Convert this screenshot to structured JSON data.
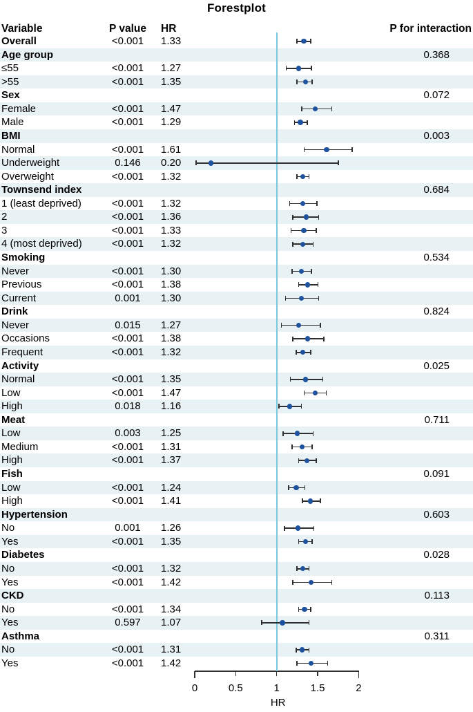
{
  "title": "Forestplot",
  "columns": {
    "variable": "Variable",
    "p_value": "P value",
    "hr": "HR",
    "p_interaction": "P for interaction"
  },
  "chart_data": {
    "type": "forest",
    "title": "Forestplot",
    "xlabel": "HR",
    "xlim": [
      0,
      2
    ],
    "x_ticks": [
      "0",
      "0.5",
      "1",
      "1.5",
      "2"
    ],
    "reference_line": 1,
    "legend": "none",
    "colors": {
      "marker": "#1e529e",
      "error_bar": "#2f2f2f",
      "reference_line": "#7cc7d9",
      "row_stripe": "#e8f1f3"
    },
    "rows": [
      {
        "label": "Overall",
        "bold": true,
        "p": "<0.001",
        "hr": "1.33",
        "est": 1.33,
        "lo": 1.24,
        "hi": 1.42
      },
      {
        "label": "Age group",
        "bold": true,
        "p_int": "0.368"
      },
      {
        "label": "≤55",
        "p": "<0.001",
        "hr": "1.27",
        "est": 1.27,
        "lo": 1.11,
        "hi": 1.43
      },
      {
        "label": ">55",
        "p": "<0.001",
        "hr": "1.35",
        "est": 1.35,
        "lo": 1.24,
        "hi": 1.44
      },
      {
        "label": "Sex",
        "bold": true,
        "p_int": "0.072"
      },
      {
        "label": "Female",
        "p": "<0.001",
        "hr": "1.47",
        "est": 1.47,
        "lo": 1.3,
        "hi": 1.68
      },
      {
        "label": "Male",
        "p": "<0.001",
        "hr": "1.29",
        "est": 1.29,
        "lo": 1.21,
        "hi": 1.38
      },
      {
        "label": "BMI",
        "bold": true,
        "p_int": "0.003"
      },
      {
        "label": "Normal",
        "p": "<0.001",
        "hr": "1.61",
        "est": 1.61,
        "lo": 1.33,
        "hi": 1.93
      },
      {
        "label": "Underweight",
        "p": "0.146",
        "hr": "0.20",
        "est": 0.2,
        "lo": 0.01,
        "hi": 1.76
      },
      {
        "label": "Overweight",
        "p": "<0.001",
        "hr": "1.32",
        "est": 1.32,
        "lo": 1.24,
        "hi": 1.4
      },
      {
        "label": "Townsend index",
        "bold": true,
        "p_int": "0.684"
      },
      {
        "label": "1 (least deprived)",
        "p": "<0.001",
        "hr": "1.32",
        "est": 1.32,
        "lo": 1.15,
        "hi": 1.5
      },
      {
        "label": "2",
        "p": "<0.001",
        "hr": "1.36",
        "est": 1.36,
        "lo": 1.19,
        "hi": 1.52
      },
      {
        "label": "3",
        "p": "<0.001",
        "hr": "1.33",
        "est": 1.33,
        "lo": 1.17,
        "hi": 1.49
      },
      {
        "label": "4 (most deprived)",
        "p": "<0.001",
        "hr": "1.32",
        "est": 1.32,
        "lo": 1.19,
        "hi": 1.45
      },
      {
        "label": "Smoking",
        "bold": true,
        "p_int": "0.534"
      },
      {
        "label": "Never",
        "p": "<0.001",
        "hr": "1.30",
        "est": 1.3,
        "lo": 1.18,
        "hi": 1.43
      },
      {
        "label": "Previous",
        "p": "<0.001",
        "hr": "1.38",
        "est": 1.38,
        "lo": 1.26,
        "hi": 1.51
      },
      {
        "label": "Current",
        "p": "0.001",
        "hr": "1.30",
        "est": 1.3,
        "lo": 1.1,
        "hi": 1.52
      },
      {
        "label": "Drink",
        "bold": true,
        "p_int": "0.824"
      },
      {
        "label": "Never",
        "p": "0.015",
        "hr": "1.27",
        "est": 1.27,
        "lo": 1.05,
        "hi": 1.54
      },
      {
        "label": "Occasions",
        "p": "<0.001",
        "hr": "1.38",
        "est": 1.38,
        "lo": 1.19,
        "hi": 1.58
      },
      {
        "label": "Frequent",
        "p": "<0.001",
        "hr": "1.32",
        "est": 1.32,
        "lo": 1.23,
        "hi": 1.42
      },
      {
        "label": "Activity",
        "bold": true,
        "p_int": "0.025"
      },
      {
        "label": "Normal",
        "p": "<0.001",
        "hr": "1.35",
        "est": 1.35,
        "lo": 1.16,
        "hi": 1.57
      },
      {
        "label": "Low",
        "p": "<0.001",
        "hr": "1.47",
        "est": 1.47,
        "lo": 1.33,
        "hi": 1.61
      },
      {
        "label": "High",
        "p": "0.018",
        "hr": "1.16",
        "est": 1.16,
        "lo": 1.02,
        "hi": 1.31
      },
      {
        "label": "Meat",
        "bold": true,
        "p_int": "0.711"
      },
      {
        "label": "Low",
        "p": "0.003",
        "hr": "1.25",
        "est": 1.25,
        "lo": 1.07,
        "hi": 1.45
      },
      {
        "label": "Medium",
        "p": "<0.001",
        "hr": "1.31",
        "est": 1.31,
        "lo": 1.18,
        "hi": 1.44
      },
      {
        "label": "High",
        "p": "<0.001",
        "hr": "1.37",
        "est": 1.37,
        "lo": 1.26,
        "hi": 1.49
      },
      {
        "label": "Fish",
        "bold": true,
        "p_int": "0.091"
      },
      {
        "label": "Low",
        "p": "<0.001",
        "hr": "1.24",
        "est": 1.24,
        "lo": 1.14,
        "hi": 1.35
      },
      {
        "label": "High",
        "p": "<0.001",
        "hr": "1.41",
        "est": 1.41,
        "lo": 1.31,
        "hi": 1.54
      },
      {
        "label": "Hypertension",
        "bold": true,
        "p_int": "0.603"
      },
      {
        "label": "No",
        "p": "0.001",
        "hr": "1.26",
        "est": 1.26,
        "lo": 1.09,
        "hi": 1.46
      },
      {
        "label": "Yes",
        "p": "<0.001",
        "hr": "1.35",
        "est": 1.35,
        "lo": 1.26,
        "hi": 1.44
      },
      {
        "label": "Diabetes",
        "bold": true,
        "p_int": "0.028"
      },
      {
        "label": "No",
        "p": "<0.001",
        "hr": "1.32",
        "est": 1.32,
        "lo": 1.24,
        "hi": 1.4
      },
      {
        "label": "Yes",
        "p": "<0.001",
        "hr": "1.42",
        "est": 1.42,
        "lo": 1.19,
        "hi": 1.68
      },
      {
        "label": "CKD",
        "bold": true,
        "p_int": "0.113"
      },
      {
        "label": "No",
        "p": "<0.001",
        "hr": "1.34",
        "est": 1.34,
        "lo": 1.26,
        "hi": 1.42
      },
      {
        "label": "Yes",
        "p": "0.597",
        "hr": "1.07",
        "est": 1.07,
        "lo": 0.81,
        "hi": 1.4
      },
      {
        "label": "Asthma",
        "bold": true,
        "p_int": "0.311"
      },
      {
        "label": "No",
        "p": "<0.001",
        "hr": "1.31",
        "est": 1.31,
        "lo": 1.23,
        "hi": 1.4
      },
      {
        "label": "Yes",
        "p": "<0.001",
        "hr": "1.42",
        "est": 1.42,
        "lo": 1.24,
        "hi": 1.63
      }
    ]
  }
}
